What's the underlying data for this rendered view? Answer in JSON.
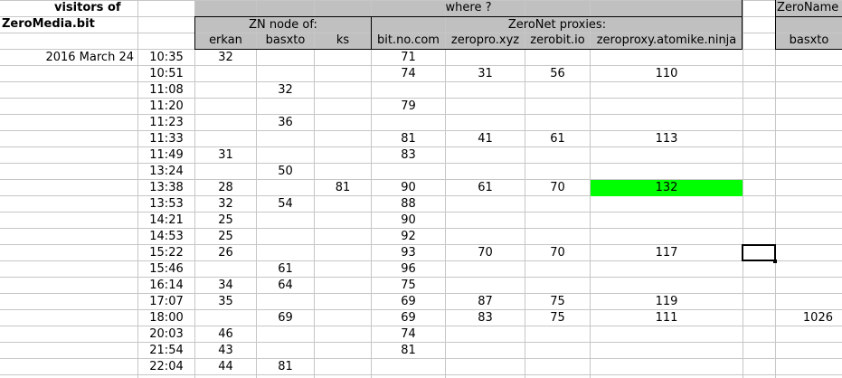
{
  "title_line1": "visitors of",
  "title_line2": "ZeroMedia.bit",
  "header_where": "where ?",
  "header_zeroname": "ZeroName",
  "header_zn_node": "ZN node of:",
  "header_proxies": "ZeroNet proxies:",
  "columns": [
    "erkan",
    "basxto",
    "ks",
    "bit.no.com",
    "zeropro.xyz",
    "zerobit.io",
    "zeroproxy.atomike.ninja",
    "basxto"
  ],
  "date_label": "2016 March 24",
  "highlight_color": "#00ff00",
  "rows": [
    {
      "time": "10:35",
      "erkan": "32",
      "basxto": "",
      "ks": "",
      "bitno": "71",
      "zeropro": "",
      "zerobit": "",
      "atomike": "",
      "zeroname": ""
    },
    {
      "time": "10:51",
      "erkan": "",
      "basxto": "",
      "ks": "",
      "bitno": "74",
      "zeropro": "31",
      "zerobit": "56",
      "atomike": "110",
      "zeroname": ""
    },
    {
      "time": "11:08",
      "erkan": "",
      "basxto": "32",
      "ks": "",
      "bitno": "",
      "zeropro": "",
      "zerobit": "",
      "atomike": "",
      "zeroname": ""
    },
    {
      "time": "11:20",
      "erkan": "",
      "basxto": "",
      "ks": "",
      "bitno": "79",
      "zeropro": "",
      "zerobit": "",
      "atomike": "",
      "zeroname": ""
    },
    {
      "time": "11:23",
      "erkan": "",
      "basxto": "36",
      "ks": "",
      "bitno": "",
      "zeropro": "",
      "zerobit": "",
      "atomike": "",
      "zeroname": ""
    },
    {
      "time": "11:33",
      "erkan": "",
      "basxto": "",
      "ks": "",
      "bitno": "81",
      "zeropro": "41",
      "zerobit": "61",
      "atomike": "113",
      "zeroname": ""
    },
    {
      "time": "11:49",
      "erkan": "31",
      "basxto": "",
      "ks": "",
      "bitno": "83",
      "zeropro": "",
      "zerobit": "",
      "atomike": "",
      "zeroname": ""
    },
    {
      "time": "13:24",
      "erkan": "",
      "basxto": "50",
      "ks": "",
      "bitno": "",
      "zeropro": "",
      "zerobit": "",
      "atomike": "",
      "zeroname": ""
    },
    {
      "time": "13:38",
      "erkan": "28",
      "basxto": "",
      "ks": "81",
      "bitno": "90",
      "zeropro": "61",
      "zerobit": "70",
      "atomike": "132",
      "zeroname": ""
    },
    {
      "time": "13:53",
      "erkan": "32",
      "basxto": "54",
      "ks": "",
      "bitno": "88",
      "zeropro": "",
      "zerobit": "",
      "atomike": "",
      "zeroname": ""
    },
    {
      "time": "14:21",
      "erkan": "25",
      "basxto": "",
      "ks": "",
      "bitno": "90",
      "zeropro": "",
      "zerobit": "",
      "atomike": "",
      "zeroname": ""
    },
    {
      "time": "14:53",
      "erkan": "25",
      "basxto": "",
      "ks": "",
      "bitno": "92",
      "zeropro": "",
      "zerobit": "",
      "atomike": "",
      "zeroname": ""
    },
    {
      "time": "15:22",
      "erkan": "26",
      "basxto": "",
      "ks": "",
      "bitno": "93",
      "zeropro": "70",
      "zerobit": "70",
      "atomike": "117",
      "zeroname": ""
    },
    {
      "time": "15:46",
      "erkan": "",
      "basxto": "61",
      "ks": "",
      "bitno": "96",
      "zeropro": "",
      "zerobit": "",
      "atomike": "",
      "zeroname": ""
    },
    {
      "time": "16:14",
      "erkan": "34",
      "basxto": "64",
      "ks": "",
      "bitno": "75",
      "zeropro": "",
      "zerobit": "",
      "atomike": "",
      "zeroname": ""
    },
    {
      "time": "17:07",
      "erkan": "35",
      "basxto": "",
      "ks": "",
      "bitno": "69",
      "zeropro": "87",
      "zerobit": "75",
      "atomike": "119",
      "zeroname": ""
    },
    {
      "time": "18:00",
      "erkan": "",
      "basxto": "69",
      "ks": "",
      "bitno": "69",
      "zeropro": "83",
      "zerobit": "75",
      "atomike": "111",
      "zeroname": "1026"
    },
    {
      "time": "20:03",
      "erkan": "46",
      "basxto": "",
      "ks": "",
      "bitno": "74",
      "zeropro": "",
      "zerobit": "",
      "atomike": "",
      "zeroname": ""
    },
    {
      "time": "21:54",
      "erkan": "43",
      "basxto": "",
      "ks": "",
      "bitno": "81",
      "zeropro": "",
      "zerobit": "",
      "atomike": "",
      "zeroname": ""
    },
    {
      "time": "22:04",
      "erkan": "44",
      "basxto": "81",
      "ks": "",
      "bitno": "",
      "zeropro": "",
      "zerobit": "",
      "atomike": "",
      "zeroname": ""
    }
  ]
}
